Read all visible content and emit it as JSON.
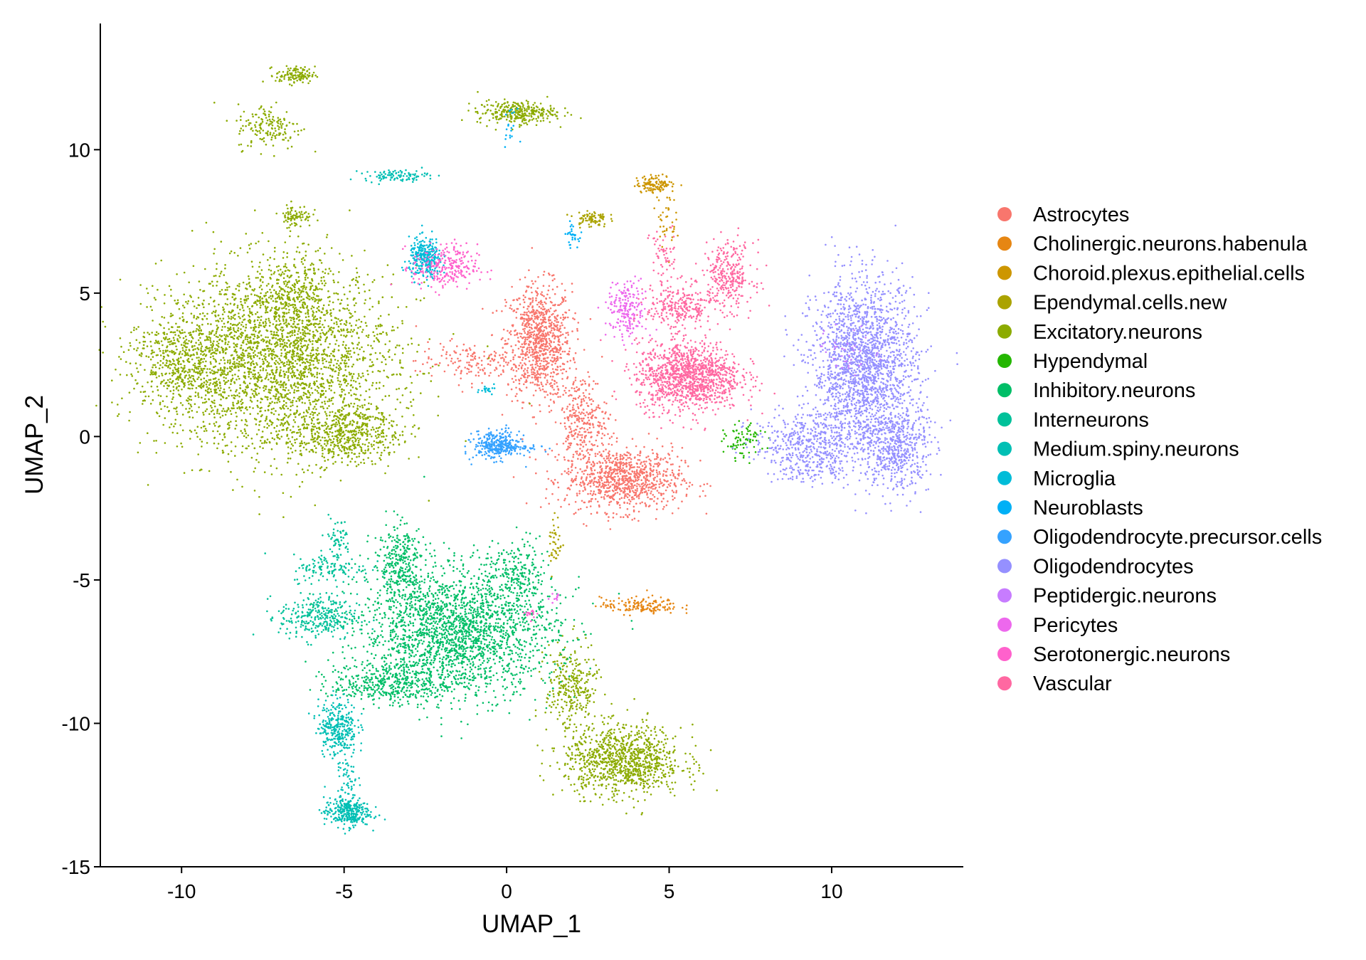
{
  "chart_data": {
    "type": "scatter",
    "title": "",
    "xlabel": "UMAP_1",
    "ylabel": "UMAP_2",
    "xlim": [
      -12.5,
      14.05
    ],
    "ylim": [
      -15,
      14.4
    ],
    "xticks": [
      -10,
      -5,
      0,
      5,
      10
    ],
    "yticks": [
      10,
      5,
      0,
      -5,
      -10,
      -15
    ],
    "xtick_labels": [
      "-10",
      "-5",
      "0",
      "5",
      "10"
    ],
    "ytick_labels": [
      "10",
      "5",
      "0",
      "-5",
      "-10",
      "-15"
    ],
    "grid": false,
    "legend_placement": "right",
    "series": [
      {
        "name": "Astrocytes",
        "color": "#F8766D",
        "clusters": [
          [
            1.0,
            3.3,
            0.5,
            1.0,
            900
          ],
          [
            3.6,
            -1.5,
            0.9,
            0.55,
            900
          ],
          [
            2.3,
            0.6,
            0.4,
            0.8,
            300
          ],
          [
            -1.2,
            2.6,
            0.8,
            0.35,
            150
          ]
        ]
      },
      {
        "name": "Cholinergic.neurons.habenula",
        "color": "#E68613",
        "clusters": [
          [
            4.1,
            -5.9,
            0.6,
            0.15,
            150
          ]
        ]
      },
      {
        "name": "Choroid.plexus.epithelial.cells",
        "color": "#CD9600",
        "clusters": [
          [
            4.6,
            8.8,
            0.3,
            0.15,
            120
          ],
          [
            4.9,
            7.6,
            0.15,
            0.5,
            40
          ]
        ]
      },
      {
        "name": "Ependymal.cells.new",
        "color": "#ABA300",
        "clusters": [
          [
            2.6,
            7.6,
            0.25,
            0.15,
            80
          ],
          [
            1.5,
            -3.7,
            0.1,
            0.5,
            40
          ]
        ]
      },
      {
        "name": "Excitatory.neurons",
        "color": "#8CAB00",
        "clusters": [
          [
            -7.0,
            2.6,
            1.8,
            1.6,
            2800
          ],
          [
            -10.0,
            2.6,
            0.8,
            0.9,
            500
          ],
          [
            -4.9,
            0.1,
            0.8,
            0.5,
            500
          ],
          [
            -6.6,
            4.8,
            0.6,
            0.8,
            300
          ],
          [
            -6.5,
            12.6,
            0.3,
            0.15,
            120
          ],
          [
            -7.3,
            10.8,
            0.5,
            0.4,
            160
          ],
          [
            -6.5,
            7.7,
            0.25,
            0.2,
            80
          ],
          [
            0.3,
            11.3,
            0.6,
            0.2,
            300
          ],
          [
            3.6,
            -11.3,
            0.9,
            0.6,
            1000
          ],
          [
            2.0,
            -8.8,
            0.4,
            0.8,
            300
          ]
        ]
      },
      {
        "name": "Hypendymal",
        "color": "#24B700",
        "clusters": [
          [
            7.3,
            -0.2,
            0.3,
            0.3,
            80
          ]
        ]
      },
      {
        "name": "Inhibitory.neurons",
        "color": "#00BE67",
        "clusters": [
          [
            -1.5,
            -6.8,
            1.5,
            1.1,
            2200
          ],
          [
            -3.3,
            -4.4,
            0.4,
            0.7,
            300
          ],
          [
            -3.6,
            -8.6,
            0.9,
            0.35,
            400
          ],
          [
            0.3,
            -4.8,
            0.5,
            0.6,
            200
          ]
        ]
      },
      {
        "name": "Interneurons",
        "color": "#00C19A",
        "clusters": [
          [
            -5.8,
            -6.3,
            0.6,
            0.4,
            300
          ],
          [
            -5.4,
            -4.6,
            0.6,
            0.25,
            120
          ],
          [
            -5.2,
            -3.6,
            0.2,
            0.4,
            60
          ]
        ]
      },
      {
        "name": "Medium.spiny.neurons",
        "color": "#00BFB4",
        "clusters": [
          [
            -3.4,
            9.1,
            0.5,
            0.1,
            100
          ],
          [
            -4.9,
            -13.1,
            0.35,
            0.25,
            300
          ],
          [
            -5.2,
            -10.1,
            0.3,
            0.5,
            300
          ],
          [
            -4.9,
            -11.8,
            0.15,
            0.6,
            60
          ]
        ]
      },
      {
        "name": "Microglia",
        "color": "#00BCD8",
        "clusters": [
          [
            -2.5,
            6.2,
            0.25,
            0.35,
            300
          ],
          [
            -0.6,
            1.7,
            0.2,
            0.1,
            20
          ]
        ]
      },
      {
        "name": "Neuroblasts",
        "color": "#00B0F6",
        "clusters": [
          [
            2.0,
            7.0,
            0.1,
            0.2,
            30
          ],
          [
            0.1,
            10.8,
            0.1,
            0.3,
            20
          ]
        ]
      },
      {
        "name": "Oligodendrocyte.precursor.cells",
        "color": "#35A2FF",
        "clusters": [
          [
            -0.3,
            -0.3,
            0.35,
            0.25,
            300
          ],
          [
            0.3,
            -0.4,
            0.4,
            0.08,
            50
          ]
        ]
      },
      {
        "name": "Oligodendrocytes",
        "color": "#9590FF",
        "clusters": [
          [
            11.0,
            2.4,
            0.8,
            1.5,
            2000
          ],
          [
            12.0,
            -0.4,
            0.5,
            0.8,
            500
          ],
          [
            9.2,
            -0.2,
            0.8,
            0.5,
            400
          ],
          [
            9.4,
            -1.1,
            0.5,
            0.3,
            100
          ]
        ]
      },
      {
        "name": "Peptidergic.neurons",
        "color": "#C77CFF",
        "clusters": [
          [
            10.5,
            3.0,
            0.5,
            0.4,
            40
          ]
        ]
      },
      {
        "name": "Pericytes",
        "color": "#ED68ED",
        "clusters": [
          [
            3.7,
            4.4,
            0.3,
            0.5,
            200
          ],
          [
            1.5,
            -5.6,
            0.1,
            0.1,
            10
          ]
        ]
      },
      {
        "name": "Serotonergic.neurons",
        "color": "#FF61CC",
        "clusters": [
          [
            -1.9,
            5.9,
            0.5,
            0.4,
            250
          ],
          [
            0.8,
            -6.2,
            0.1,
            0.1,
            15
          ]
        ]
      },
      {
        "name": "Vascular",
        "color": "#FF68A1",
        "clusters": [
          [
            5.6,
            2.1,
            0.8,
            0.6,
            1200
          ],
          [
            6.8,
            5.6,
            0.4,
            0.6,
            300
          ],
          [
            5.3,
            4.5,
            0.5,
            0.4,
            250
          ],
          [
            4.8,
            6.2,
            0.2,
            0.6,
            60
          ]
        ]
      }
    ]
  }
}
